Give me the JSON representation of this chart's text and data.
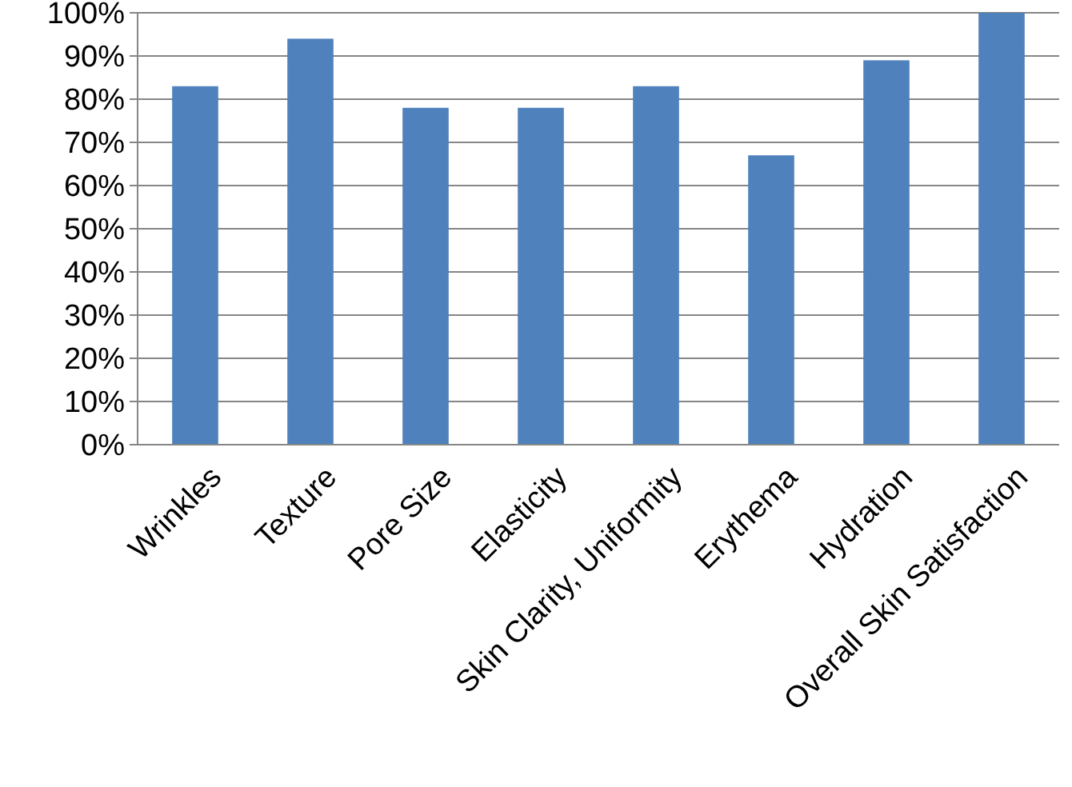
{
  "chart_data": {
    "type": "bar",
    "categories": [
      "Wrinkles",
      "Texture",
      "Pore Size",
      "Elasticity",
      "Skin Clarity, Uniformity",
      "Erythema",
      "Hydration",
      "Overall Skin Satisfaction"
    ],
    "values": [
      83,
      94,
      78,
      78,
      83,
      67,
      89,
      100
    ],
    "color": "#4f81bd",
    "ylim": [
      0,
      100
    ],
    "yticks": [
      {
        "value": 0,
        "label": "0%"
      },
      {
        "value": 10,
        "label": "10%"
      },
      {
        "value": 20,
        "label": "20%"
      },
      {
        "value": 30,
        "label": "30%"
      },
      {
        "value": 40,
        "label": "40%"
      },
      {
        "value": 50,
        "label": "50%"
      },
      {
        "value": 60,
        "label": "60%"
      },
      {
        "value": 70,
        "label": "70%"
      },
      {
        "value": 80,
        "label": "80%"
      },
      {
        "value": 90,
        "label": "90%"
      },
      {
        "value": 100,
        "label": "100%"
      }
    ],
    "grid": "y"
  }
}
